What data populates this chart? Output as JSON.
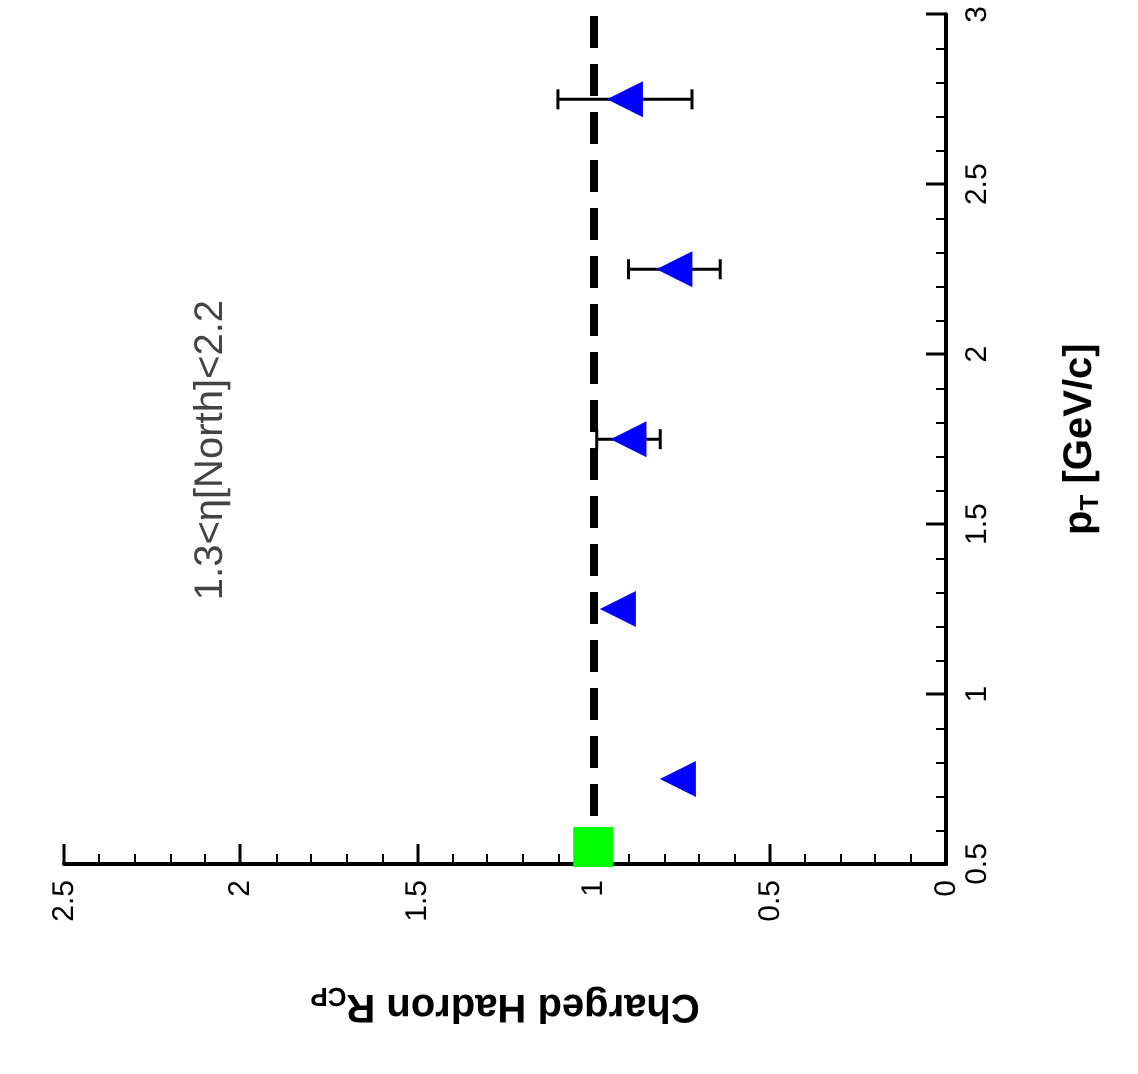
{
  "chart_data": {
    "type": "scatter",
    "xlabel": "Charged Hadron R$_{CP}$",
    "ylabel": "p$_{T}$ [GeV/c]",
    "xlim": [
      2.5,
      0
    ],
    "xticks": [
      2.5,
      2,
      1.5,
      1,
      0.5,
      0
    ],
    "ylim": [
      0.5,
      3
    ],
    "yticks": [
      0.5,
      1,
      1.5,
      2,
      2.5,
      3
    ],
    "grid": false,
    "series": [
      {
        "color": "#0000ff",
        "marker": "triangle",
        "x": [
          0.76,
          0.93,
          0.9,
          0.77,
          0.91
        ],
        "values": [
          0.75,
          1.25,
          1.75,
          2.25,
          2.75
        ],
        "xerrors": [
          null,
          null,
          0.09,
          0.13,
          0.19
        ]
      },
      {
        "color": "#00ff00",
        "marker": "square",
        "x": [
          1
        ],
        "values": [
          0.55
        ]
      }
    ],
    "ref_lines": [
      {
        "axis": "x",
        "value": 1,
        "line_style": "dashed",
        "color": "#000000"
      }
    ],
    "annotations": [
      "1.3<η[North]<2.2"
    ]
  }
}
